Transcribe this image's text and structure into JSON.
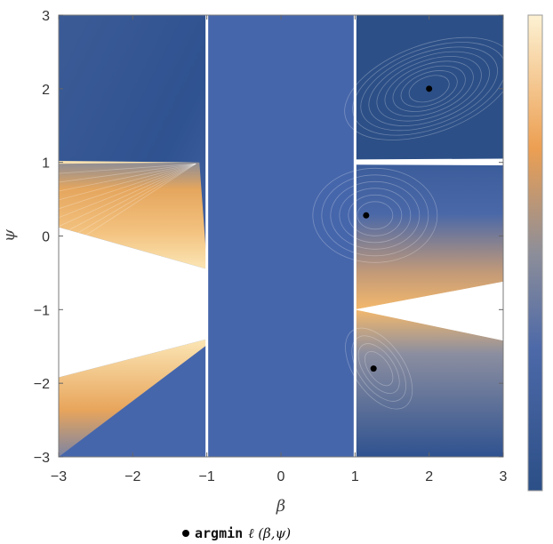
{
  "chart_data": {
    "type": "contour",
    "xlabel": "β",
    "ylabel": "ψ",
    "xlim": [
      -3,
      3
    ],
    "ylim": [
      -3,
      3
    ],
    "x_ticks": [
      "−3",
      "−2",
      "−1",
      "0",
      "1",
      "2",
      "3"
    ],
    "y_ticks": [
      "−3",
      "−2",
      "−1",
      "0",
      "1",
      "2",
      "3"
    ],
    "x_tick_values": [
      -3,
      -2,
      -1,
      0,
      1,
      2,
      3
    ],
    "y_tick_values": [
      -3,
      -2,
      -1,
      0,
      1,
      2,
      3
    ],
    "excluded_vertical_lines": [
      -1,
      1
    ],
    "singular_horizontal_line": 1,
    "points": [
      {
        "beta": 2.0,
        "psi": 2.0
      },
      {
        "beta": 1.15,
        "psi": 0.28
      },
      {
        "beta": 1.25,
        "psi": -1.8
      }
    ],
    "colormap": [
      "#2c4f87",
      "#4666ab",
      "#5a72ae",
      "#98928f",
      "#f0a95b",
      "#fbe9b9"
    ],
    "legend_position": "bottom-center"
  },
  "legend": {
    "label_func": "argmin",
    "label_expr": "ℓ (β,ψ)"
  }
}
